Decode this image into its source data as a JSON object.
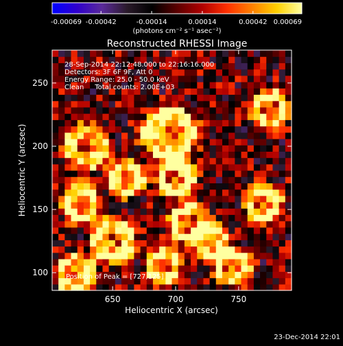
{
  "colors": {
    "background": "#000000",
    "foreground": "#ffffff",
    "colormap": [
      "#0000ff",
      "#3000cc",
      "#5a2a9a",
      "#2a1a2a",
      "#000000",
      "#5a0000",
      "#b00000",
      "#ff3000",
      "#ff8000",
      "#ffd000",
      "#ffffa0"
    ]
  },
  "colorbar": {
    "tick_labels": [
      "-0.00069",
      "-0.00042",
      "-0.00014",
      "0.00014",
      "0.00042",
      "0.00069"
    ],
    "unit_label": "(photons cm⁻² s⁻¹ asec⁻²)",
    "range": [
      -0.00069,
      0.00069
    ]
  },
  "timestamp": "23-Dec-2014 22:01",
  "chart_data": {
    "type": "heatmap",
    "title": "Reconstructed RHESSI Image",
    "xlabel": "Heliocentric X (arcsec)",
    "ylabel": "Heliocentric Y (arcsec)",
    "xlim": [
      602,
      792
    ],
    "ylim": [
      86,
      276
    ],
    "x_ticks": [
      650,
      700,
      750
    ],
    "y_ticks": [
      100,
      150,
      200,
      250
    ],
    "grid": false,
    "annotations": [
      "28-Sep-2014 22:12:48.000 to 22:16:16.000",
      "Detectors: 3F 6F 9F, Att 0",
      "Energy Range: 25.0 - 50.0 keV",
      "Clean     Total counts: 2.00E+03"
    ],
    "peak_label": "Position of Peak = [727,125]",
    "peak": [
      727,
      125
    ],
    "sources": [
      {
        "x": 630,
        "y": 200,
        "r": 18
      },
      {
        "x": 625,
        "y": 155,
        "r": 16
      },
      {
        "x": 660,
        "y": 175,
        "r": 15
      },
      {
        "x": 650,
        "y": 125,
        "r": 18
      },
      {
        "x": 695,
        "y": 210,
        "r": 22
      },
      {
        "x": 700,
        "y": 175,
        "r": 16
      },
      {
        "x": 710,
        "y": 140,
        "r": 16
      },
      {
        "x": 727,
        "y": 125,
        "r": 14
      },
      {
        "x": 775,
        "y": 230,
        "r": 15
      },
      {
        "x": 770,
        "y": 155,
        "r": 15
      },
      {
        "x": 745,
        "y": 105,
        "r": 15
      },
      {
        "x": 620,
        "y": 100,
        "r": 16
      },
      {
        "x": 690,
        "y": 105,
        "r": 14
      }
    ]
  }
}
